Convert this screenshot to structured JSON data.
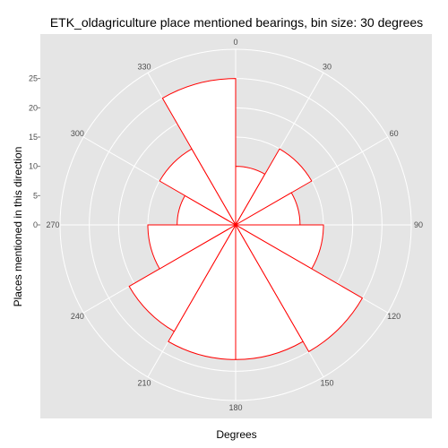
{
  "chart_data": {
    "type": "polar-bar",
    "title": "ETK_oldagriculture place mentioned bearings, bin size: 30 degrees",
    "xlabel": "Degrees",
    "ylabel": "Places mentioned in this direction",
    "angle_ticks": [
      "0",
      "30",
      "60",
      "90",
      "120",
      "150",
      "180",
      "210",
      "240",
      "270",
      "300",
      "330"
    ],
    "radial_ticks": [
      "0",
      "5",
      "10",
      "15",
      "20",
      "25"
    ],
    "radial_tick_values": [
      0,
      5,
      10,
      15,
      20,
      25
    ],
    "radial_max": 30,
    "bin_size": 30,
    "bins": [
      {
        "start": 0,
        "end": 30,
        "value": 10
      },
      {
        "start": 30,
        "end": 60,
        "value": 15
      },
      {
        "start": 60,
        "end": 90,
        "value": 11
      },
      {
        "start": 90,
        "end": 120,
        "value": 15
      },
      {
        "start": 120,
        "end": 150,
        "value": 25
      },
      {
        "start": 150,
        "end": 180,
        "value": 23
      },
      {
        "start": 180,
        "end": 210,
        "value": 23
      },
      {
        "start": 210,
        "end": 240,
        "value": 21
      },
      {
        "start": 240,
        "end": 270,
        "value": 15
      },
      {
        "start": 270,
        "end": 300,
        "value": 10
      },
      {
        "start": 300,
        "end": 330,
        "value": 15
      },
      {
        "start": 330,
        "end": 360,
        "value": 25
      }
    ],
    "colors": {
      "panel": "#e5e5e5",
      "grid": "#ffffff",
      "bar_fill": "#ffffff",
      "bar_stroke": "#ff0000",
      "tick_text": "#4d4d4d"
    }
  }
}
